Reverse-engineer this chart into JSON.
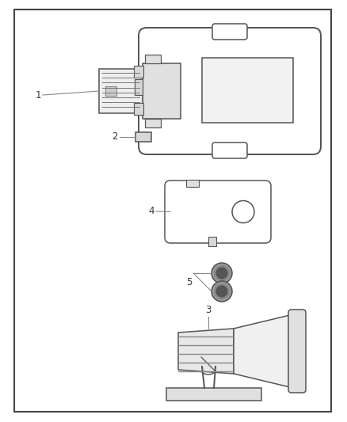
{
  "background_color": "#ffffff",
  "border_color": "#444444",
  "ec": "#555555",
  "fc": "#ffffff",
  "lw": 1.1,
  "label_fs": 8.5,
  "label_color": "#333333"
}
